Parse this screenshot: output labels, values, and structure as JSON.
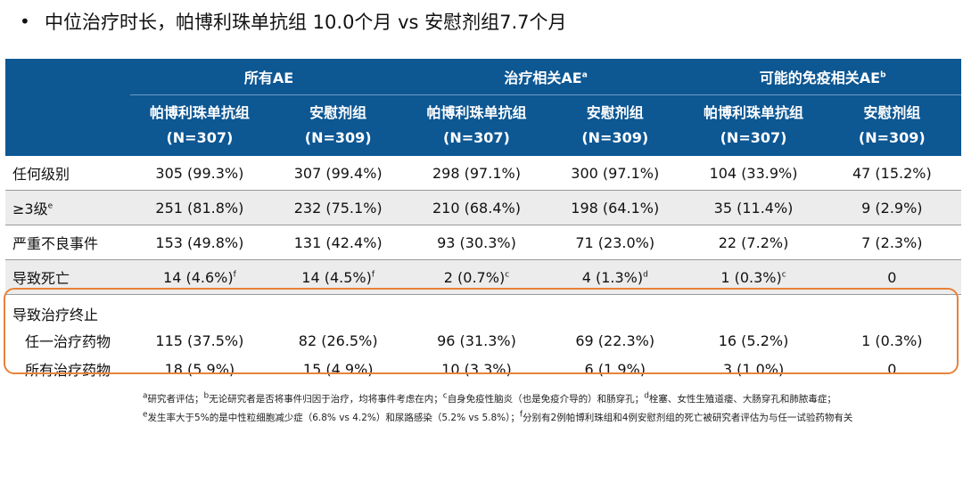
{
  "headline": {
    "bullet": "•",
    "text": "中位治疗时长，帕博利珠单抗组 10.0个月 vs 安慰剂组7.7个月"
  },
  "table": {
    "groups": [
      {
        "label": "所有AE",
        "sup": ""
      },
      {
        "label": "治疗相关AE",
        "sup": "a"
      },
      {
        "label": "可能的免疫相关AE",
        "sup": "b"
      }
    ],
    "subheaders": [
      {
        "name": "帕博利珠单抗组",
        "n": "(N=307)"
      },
      {
        "name": "安慰剂组",
        "n": "(N=309)"
      },
      {
        "name": "帕博利珠单抗组",
        "n": "(N=307)"
      },
      {
        "name": "安慰剂组",
        "n": "(N=309)"
      },
      {
        "name": "帕博利珠单抗组",
        "n": "(N=307)"
      },
      {
        "name": "安慰剂组",
        "n": "(N=309)"
      }
    ],
    "rows": [
      {
        "label": "任何级别",
        "label_sup": "",
        "cells": [
          {
            "v": "305 (99.3%)",
            "s": ""
          },
          {
            "v": "307 (99.4%)",
            "s": ""
          },
          {
            "v": "298 (97.1%)",
            "s": ""
          },
          {
            "v": "300 (97.1%)",
            "s": ""
          },
          {
            "v": "104 (33.9%)",
            "s": ""
          },
          {
            "v": "47 (15.2%)",
            "s": ""
          }
        ]
      },
      {
        "label": "≥3级",
        "label_sup": "e",
        "cells": [
          {
            "v": "251 (81.8%)",
            "s": ""
          },
          {
            "v": "232 (75.1%)",
            "s": ""
          },
          {
            "v": "210 (68.4%)",
            "s": ""
          },
          {
            "v": "198 (64.1%)",
            "s": ""
          },
          {
            "v": "35 (11.4%)",
            "s": ""
          },
          {
            "v": "9 (2.9%)",
            "s": ""
          }
        ]
      },
      {
        "label": "严重不良事件",
        "label_sup": "",
        "cells": [
          {
            "v": "153 (49.8%)",
            "s": ""
          },
          {
            "v": "131 (42.4%)",
            "s": ""
          },
          {
            "v": "93 (30.3%)",
            "s": ""
          },
          {
            "v": "71 (23.0%)",
            "s": ""
          },
          {
            "v": "22 (7.2%)",
            "s": ""
          },
          {
            "v": "7 (2.3%)",
            "s": ""
          }
        ]
      },
      {
        "label": "导致死亡",
        "label_sup": "",
        "cells": [
          {
            "v": "14 (4.6%)",
            "s": "f"
          },
          {
            "v": "14 (4.5%)",
            "s": "f"
          },
          {
            "v": "2 (0.7%)",
            "s": "c"
          },
          {
            "v": "4 (1.3%)",
            "s": "d"
          },
          {
            "v": "1 (0.3%)",
            "s": "c"
          },
          {
            "v": "0",
            "s": ""
          }
        ]
      }
    ],
    "discontinuation": {
      "title": "导致治疗终止",
      "rows": [
        {
          "label": "任一治疗药物",
          "cells": [
            "115 (37.5%)",
            "82 (26.5%)",
            "96 (31.3%)",
            "69 (22.3%)",
            "16 (5.2%)",
            "1 (0.3%)"
          ]
        },
        {
          "label": "所有治疗药物",
          "cells": [
            "18 (5.9%)",
            "15 (4.9%)",
            "10 (3.3%)",
            "6 (1.9%)",
            "3 (1.0%)",
            "0"
          ]
        }
      ]
    }
  },
  "footnotes": {
    "line1": [
      {
        "sup": "a",
        "text": "研究者评估；"
      },
      {
        "sup": "b",
        "text": "无论研究者是否将事件归因于治疗，均将事件考虑在内；"
      },
      {
        "sup": "c",
        "text": "自身免疫性脑炎（也是免疫介导的）和肠穿孔；"
      },
      {
        "sup": "d",
        "text": "栓塞、女性生殖道瘘、大肠穿孔和肺脓毒症；"
      }
    ],
    "line2": [
      {
        "sup": "e",
        "text": "发生率大于5%的是中性粒细胞减少症（6.8% vs 4.2%）和尿路感染（5.2% vs 5.8%）；"
      },
      {
        "sup": "f",
        "text": "分别有2例帕博利珠组和4例安慰剂组的死亡被研究者评估为与任一试验药物有关"
      }
    ]
  },
  "colors": {
    "header_bg": "#0d5793",
    "alt_row_bg": "#ececec",
    "highlight_border": "#e8823a"
  }
}
